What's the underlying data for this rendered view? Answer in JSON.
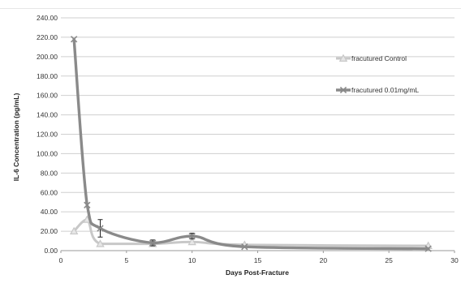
{
  "chart_data": {
    "type": "line",
    "xlabel": "Days Post-Fracture",
    "ylabel": "IL-6 Concentration (pg/mL)",
    "xlim": [
      0,
      30
    ],
    "ylim": [
      0,
      240
    ],
    "x_ticks": [
      "0",
      "5",
      "10",
      "15",
      "20",
      "25",
      "30"
    ],
    "y_ticks": [
      "0.00",
      "20.00",
      "40.00",
      "60.00",
      "80.00",
      "100.00",
      "120.00",
      "140.00",
      "160.00",
      "180.00",
      "200.00",
      "220.00",
      "240.00"
    ],
    "grid": true,
    "legend_position": "right",
    "series": [
      {
        "name": "fracutured Control",
        "color": "#c8c8c8",
        "marker": "triangle",
        "x": [
          1,
          2,
          3,
          7,
          10,
          14,
          28
        ],
        "y": [
          20,
          32,
          7,
          7,
          9,
          6,
          5
        ],
        "error": [
          null,
          null,
          null,
          null,
          null,
          null,
          null
        ]
      },
      {
        "name": "fracutured 0.01mg/mL",
        "color": "#8a8a8a",
        "marker": "x",
        "x": [
          1,
          2,
          3,
          7,
          10,
          14,
          28
        ],
        "y": [
          218,
          47,
          23,
          8,
          15,
          4,
          2
        ],
        "error": [
          null,
          null,
          9,
          3,
          3,
          null,
          null
        ]
      }
    ]
  }
}
